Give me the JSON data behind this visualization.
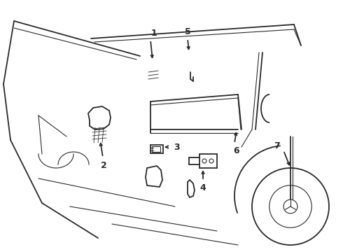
{
  "background_color": "#ffffff",
  "line_color": "#2a2a2a",
  "lw_thin": 0.8,
  "lw_med": 1.3,
  "lw_thick": 1.8,
  "fig_width": 4.9,
  "fig_height": 3.6,
  "dpi": 100,
  "label_fontsize": 9,
  "label_fontweight": "bold"
}
